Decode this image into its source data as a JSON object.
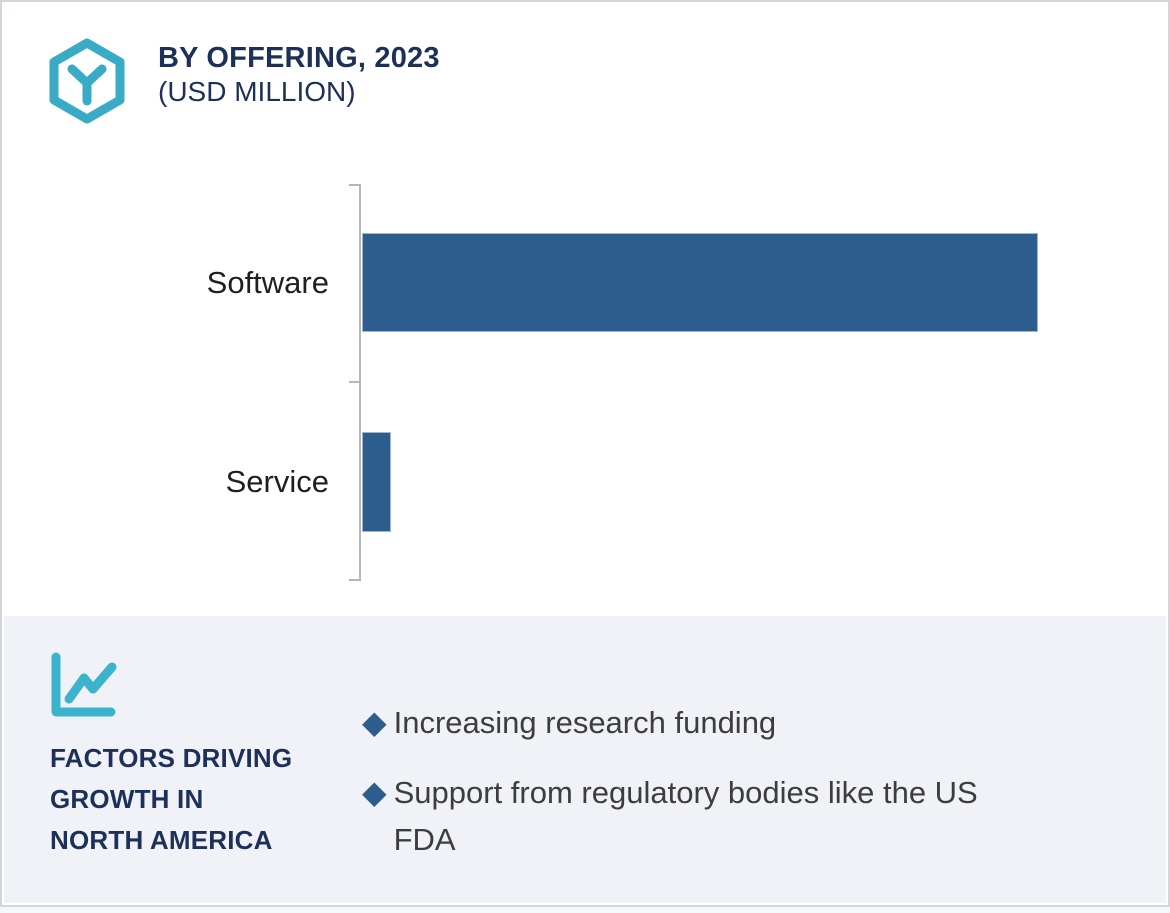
{
  "header": {
    "title": "BY OFFERING, 2023",
    "subtitle": "(USD MILLION)",
    "icon": "hexagon-y-icon"
  },
  "chart_data": {
    "type": "bar",
    "orientation": "horizontal",
    "title": "BY OFFERING, 2023",
    "subtitle": "(USD MILLION)",
    "unit": "USD Million",
    "categories": [
      "Software",
      "Service"
    ],
    "values_pct_of_max": [
      100,
      4.3
    ],
    "value_labels_shown": false,
    "x_tick_labels": [],
    "gridlines": false,
    "y_axis_ticks": 3,
    "bar_color": "#2d5d8c",
    "axis_color": "#b4b6b9"
  },
  "factors_panel": {
    "icon": "line-chart-icon",
    "heading_line1": "FACTORS DRIVING",
    "heading_line2": "GROWTH IN",
    "heading_line3": "NORTH AMERICA",
    "bullet_marker": "◆",
    "bullets": [
      "Increasing research funding",
      "Support from regulatory bodies like the US FDA"
    ]
  },
  "colors": {
    "navy": "#1c3058",
    "teal": "#3aabc7",
    "bar_blue": "#2d5d8c",
    "panel_bg": "#f1f2f7",
    "card_border": "#d2d5da"
  }
}
